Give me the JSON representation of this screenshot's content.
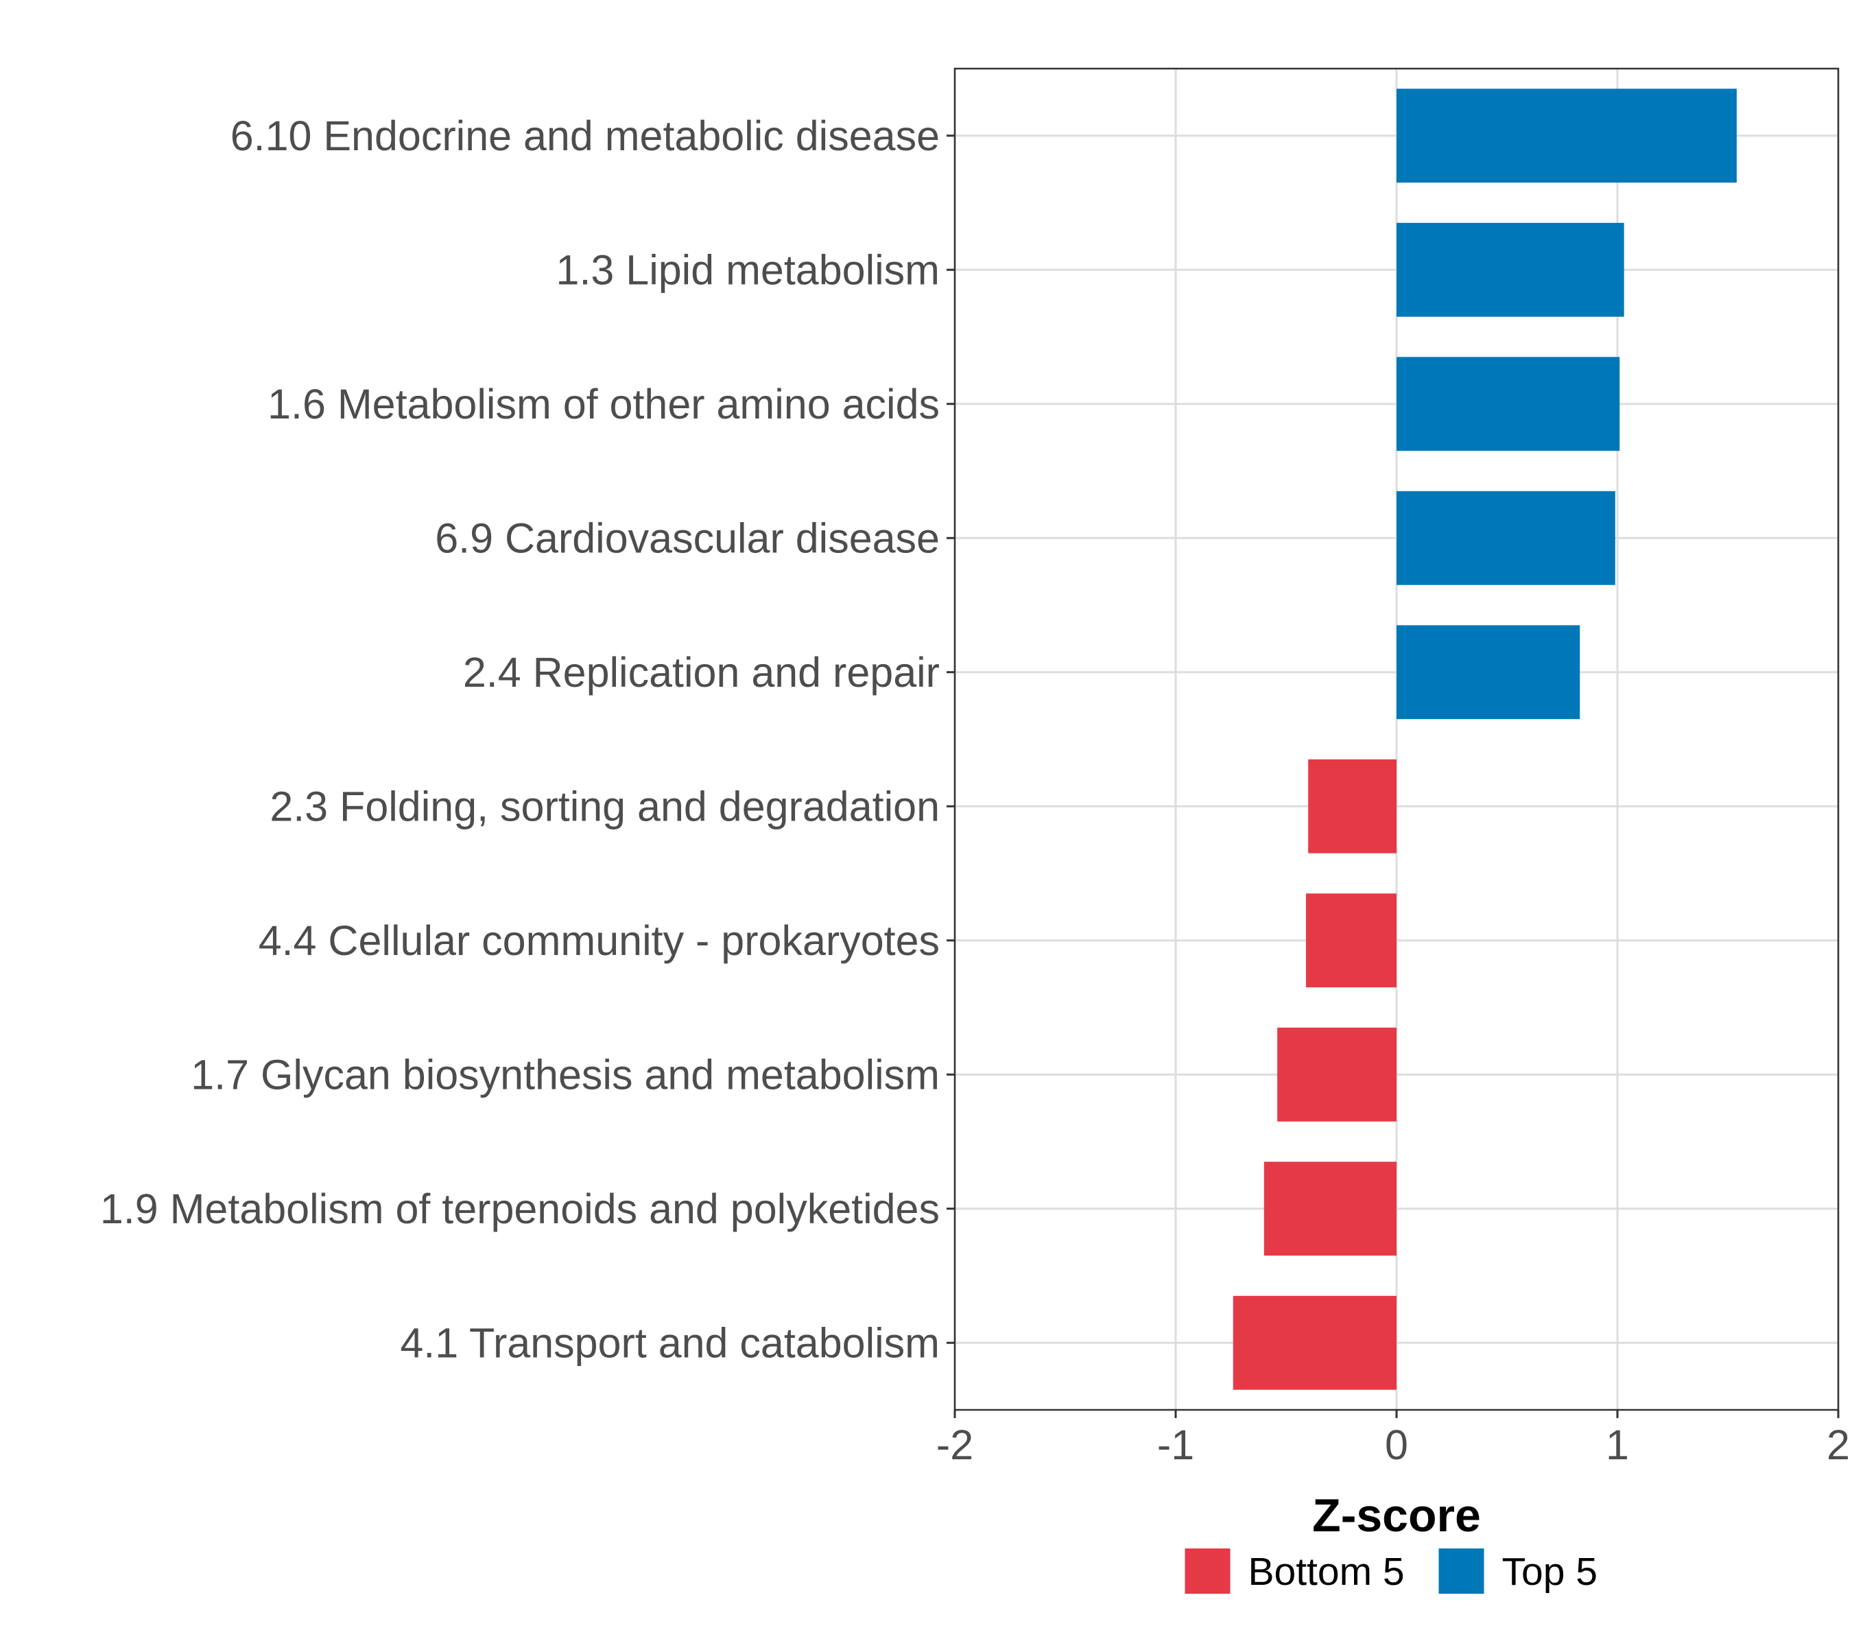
{
  "chart_data": {
    "type": "bar",
    "orientation": "horizontal",
    "title": "",
    "xlabel": "Z-score",
    "ylabel": "",
    "xlim": [
      -2,
      2
    ],
    "xticks": [
      -2,
      -1,
      0,
      1,
      2
    ],
    "xtick_labels": [
      "-2",
      "-1",
      "0",
      "1",
      "2"
    ],
    "grid": true,
    "legend_position": "bottom",
    "categories": [
      "6.10 Endocrine and metabolic disease",
      "1.3 Lipid metabolism",
      "1.6 Metabolism of other amino acids",
      "6.9 Cardiovascular disease",
      "2.4 Replication and repair",
      "2.3 Folding, sorting and degradation",
      "4.4 Cellular community - prokaryotes",
      "1.7 Glycan biosynthesis and metabolism",
      "1.9 Metabolism of terpenoids and polyketides",
      "4.1 Transport and catabolism"
    ],
    "values": [
      1.54,
      1.03,
      1.01,
      0.99,
      0.83,
      -0.4,
      -0.41,
      -0.54,
      -0.6,
      -0.74
    ],
    "groups": [
      "Top 5",
      "Top 5",
      "Top 5",
      "Top 5",
      "Top 5",
      "Bottom 5",
      "Bottom 5",
      "Bottom 5",
      "Bottom 5",
      "Bottom 5"
    ],
    "legend": [
      {
        "label": "Bottom 5",
        "color": "#e63946"
      },
      {
        "label": "Top 5",
        "color": "#0077b6"
      }
    ]
  }
}
